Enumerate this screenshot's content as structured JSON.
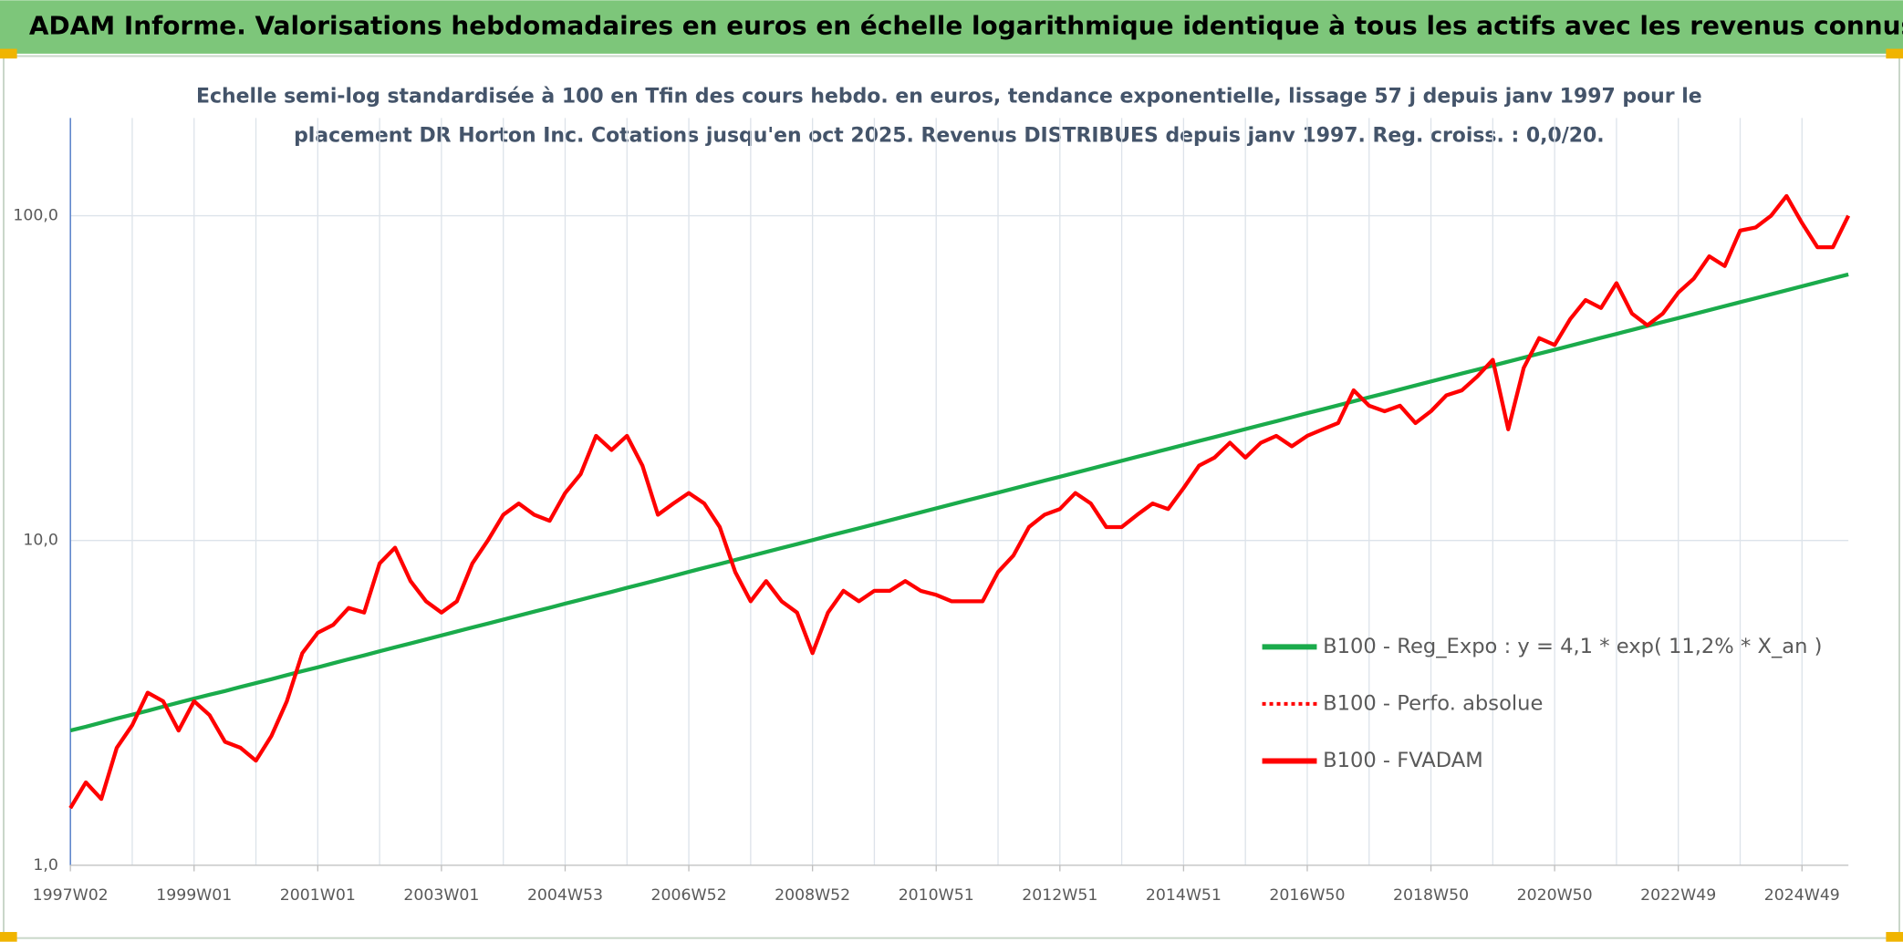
{
  "chart_data": {
    "type": "line",
    "title": "ADAM Informe. Valorisations hebdomadaires en euros en échelle logarithmique identique à tous les actifs avec les revenus connus distribués",
    "subtitle": [
      "Echelle semi-log standardisée à 100 en Tfin des cours hebdo. en euros, tendance exponentielle, lissage 57 j depuis janv 1997 pour le",
      "placement DR Horton Inc. Cotations jusqu'en oct 2025. Revenus DISTRIBUES depuis janv 1997. Reg. croiss. : 0,0/20."
    ],
    "categories": [
      "1997W02",
      null,
      null,
      null,
      null,
      null,
      null,
      null,
      "1999W01",
      null,
      null,
      null,
      null,
      null,
      null,
      null,
      "2001W01",
      null,
      null,
      null,
      null,
      null,
      null,
      null,
      "2003W01",
      null,
      null,
      null,
      null,
      null,
      null,
      null,
      "2004W53",
      null,
      null,
      null,
      null,
      null,
      null,
      null,
      "2006W52",
      null,
      null,
      null,
      null,
      null,
      null,
      null,
      "2008W52",
      null,
      null,
      null,
      null,
      null,
      null,
      null,
      "2010W51",
      null,
      null,
      null,
      null,
      null,
      null,
      null,
      "2012W51",
      null,
      null,
      null,
      null,
      null,
      null,
      null,
      "2014W51",
      null,
      null,
      null,
      null,
      null,
      null,
      null,
      "2016W50",
      null,
      null,
      null,
      null,
      null,
      null,
      null,
      "2018W50",
      null,
      null,
      null,
      null,
      null,
      null,
      null,
      "2020W50",
      null,
      null,
      null,
      null,
      null,
      null,
      null,
      "2022W49",
      null,
      null,
      null,
      null,
      null,
      null,
      null,
      "2024W49",
      null,
      null,
      null
    ],
    "log_scale": true,
    "ylim": [
      1,
      200
    ],
    "yticks": [
      {
        "value": 1,
        "label": "1,0"
      },
      {
        "value": 10,
        "label": "10,0"
      },
      {
        "value": 100,
        "label": "100,0"
      }
    ],
    "grid": true,
    "legend": "right",
    "series": [
      {
        "name": "B100 - Reg_Expo : y = 4,1 * exp( 11,2% *  X_an )",
        "color": "#1aab4b",
        "style": "solid",
        "values": [
          2.6,
          2.67,
          2.75,
          2.83,
          2.91,
          2.99,
          3.08,
          3.17,
          3.26,
          3.35,
          3.44,
          3.54,
          3.64,
          3.74,
          3.85,
          3.96,
          4.07,
          4.19,
          4.31,
          4.43,
          4.56,
          4.69,
          4.82,
          4.96,
          5.1,
          5.25,
          5.4,
          5.55,
          5.71,
          5.87,
          6.04,
          6.21,
          6.39,
          6.57,
          6.76,
          6.95,
          7.15,
          7.35,
          7.56,
          7.78,
          8.01,
          8.24,
          8.47,
          8.71,
          8.96,
          9.22,
          9.48,
          9.75,
          10.03,
          10.32,
          10.61,
          10.91,
          11.22,
          11.54,
          11.87,
          12.21,
          12.56,
          12.92,
          13.29,
          13.66,
          14.05,
          14.45,
          14.86,
          15.29,
          15.72,
          16.17,
          16.63,
          17.11,
          17.59,
          18.1,
          18.61,
          19.14,
          19.69,
          20.25,
          20.82,
          21.42,
          22.03,
          22.66,
          23.3,
          23.97,
          24.66,
          25.36,
          26.09,
          26.83,
          27.59,
          28.38,
          29.19,
          30.02,
          30.88,
          31.76,
          32.67,
          33.6,
          34.56,
          35.55,
          36.56,
          37.6,
          38.67,
          39.78,
          40.91,
          42.08,
          43.27,
          44.5,
          45.77,
          47.08,
          48.42,
          49.8,
          51.22,
          52.68,
          54.18,
          55.73,
          57.33,
          58.96,
          60.64,
          62.38,
          64.15,
          65.98
        ]
      },
      {
        "name": "B100 - Perfo. absolue",
        "color": "#ff0000",
        "style": "dotted",
        "values": [
          1.5,
          1.8,
          1.6,
          2.3,
          2.7,
          3.4,
          3.2,
          2.6,
          3.2,
          2.9,
          2.4,
          2.3,
          2.1,
          2.5,
          3.2,
          4.5,
          5.2,
          5.5,
          6.2,
          6.0,
          8.5,
          9.5,
          7.5,
          6.5,
          6.0,
          6.5,
          8.5,
          10,
          12,
          13,
          12,
          11.5,
          14,
          16,
          21,
          19,
          21,
          17,
          12,
          13,
          14,
          13,
          11,
          8,
          6.5,
          7.5,
          6.5,
          6,
          4.5,
          6,
          7,
          6.5,
          7,
          7,
          7.5,
          7,
          6.8,
          6.5,
          6.5,
          6.5,
          8,
          9,
          11,
          12,
          12.5,
          14,
          13,
          11,
          11,
          12,
          13,
          12.5,
          14.5,
          17,
          18,
          20,
          18,
          20,
          21,
          19.5,
          21,
          22,
          23,
          29,
          26,
          25,
          26,
          23,
          25,
          28,
          29,
          32,
          36,
          22,
          34,
          42,
          40,
          48,
          55,
          52,
          62,
          50,
          46,
          50,
          58,
          64,
          75,
          70,
          90,
          92,
          100,
          115,
          95,
          80,
          80,
          100
        ]
      },
      {
        "name": "B100 - FVADAM",
        "color": "#ff0000",
        "style": "solid",
        "values": [
          1.5,
          1.8,
          1.6,
          2.3,
          2.7,
          3.4,
          3.2,
          2.6,
          3.2,
          2.9,
          2.4,
          2.3,
          2.1,
          2.5,
          3.2,
          4.5,
          5.2,
          5.5,
          6.2,
          6.0,
          8.5,
          9.5,
          7.5,
          6.5,
          6.0,
          6.5,
          8.5,
          10,
          12,
          13,
          12,
          11.5,
          14,
          16,
          21,
          19,
          21,
          17,
          12,
          13,
          14,
          13,
          11,
          8,
          6.5,
          7.5,
          6.5,
          6,
          4.5,
          6,
          7,
          6.5,
          7,
          7,
          7.5,
          7,
          6.8,
          6.5,
          6.5,
          6.5,
          8,
          9,
          11,
          12,
          12.5,
          14,
          13,
          11,
          11,
          12,
          13,
          12.5,
          14.5,
          17,
          18,
          20,
          18,
          20,
          21,
          19.5,
          21,
          22,
          23,
          29,
          26,
          25,
          26,
          23,
          25,
          28,
          29,
          32,
          36,
          22,
          34,
          42,
          40,
          48,
          55,
          52,
          62,
          50,
          46,
          50,
          58,
          64,
          75,
          70,
          90,
          92,
          100,
          115,
          95,
          80,
          80,
          100
        ]
      }
    ]
  }
}
